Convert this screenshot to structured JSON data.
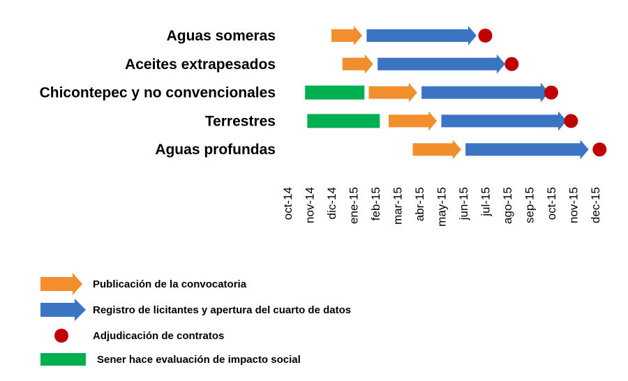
{
  "chart_data": {
    "type": "gantt",
    "title": "",
    "xlabel": "",
    "ylabel": "",
    "x_ticks": [
      "oct-14",
      "nov-14",
      "dic-14",
      "ene-15",
      "feb-15",
      "mar-15",
      "abr-15",
      "may-15",
      "jun-15",
      "jul-15",
      "ago-15",
      "sep-15",
      "oct-15",
      "nov-15",
      "dec-15"
    ],
    "categories": [
      "Aguas someras",
      "Aceites extrapesados",
      "Chicontepec y no convencionales",
      "Terrestres",
      "Aguas profundas"
    ],
    "series": [
      {
        "name": "Publicación de la convocatoria",
        "color": "#f28e2b",
        "shape": "arrow",
        "values": [
          [
            2.0,
            3.4
          ],
          [
            2.5,
            3.9
          ],
          [
            3.7,
            5.9
          ],
          [
            4.6,
            6.8
          ],
          [
            5.7,
            7.9
          ]
        ]
      },
      {
        "name": "Registro de licitantes y apertura del cuarto de datos",
        "color": "#3b74c2",
        "shape": "arrow",
        "values": [
          [
            3.6,
            8.6
          ],
          [
            4.1,
            9.9
          ],
          [
            6.1,
            11.9
          ],
          [
            7.0,
            12.7
          ],
          [
            8.1,
            13.7
          ]
        ]
      },
      {
        "name": "Adjudicación de contratos",
        "color": "#c00000",
        "shape": "circle",
        "values": [
          9.0,
          10.2,
          12.0,
          12.9,
          14.2
        ]
      },
      {
        "name": "Sener hace evaluación de impacto social",
        "color": "#00b050",
        "shape": "bar",
        "values": [
          null,
          null,
          [
            0.8,
            3.5
          ],
          [
            0.9,
            4.2
          ],
          null
        ]
      }
    ],
    "legend": [
      "Publicación de la convocatoria",
      "Registro de licitantes y apertura del cuarto de datos",
      "Adjudicación de contratos",
      "Sener hace evaluación de impacto social"
    ],
    "legend_position": "bottom-left",
    "grid": false
  }
}
